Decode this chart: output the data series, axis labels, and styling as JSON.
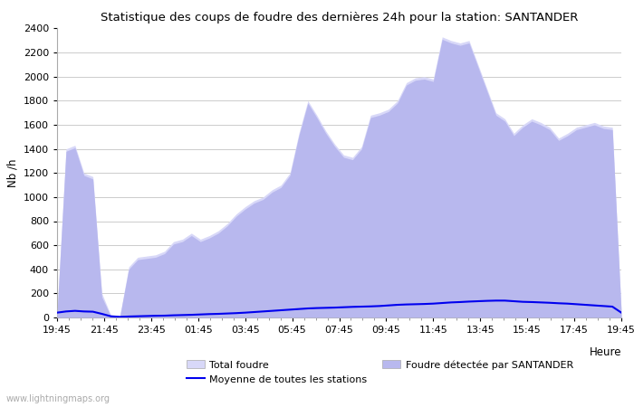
{
  "title": "Statistique des coups de foudre des dernières 24h pour la station: SANTANDER",
  "xlabel": "Heure",
  "ylabel": "Nb /h",
  "watermark": "www.lightningmaps.org",
  "ylim": [
    0,
    2400
  ],
  "yticks": [
    0,
    200,
    400,
    600,
    800,
    1000,
    1200,
    1400,
    1600,
    1800,
    2000,
    2200,
    2400
  ],
  "x_labels_display": [
    "19:45",
    "21:45",
    "23:45",
    "01:45",
    "03:45",
    "05:45",
    "07:45",
    "09:45",
    "11:45",
    "13:45",
    "15:45",
    "17:45",
    "19:45"
  ],
  "color_total": "#d8d8f8",
  "color_santander": "#b8b8ee",
  "color_moyenne": "#0000ee",
  "legend_total": "Total foudre",
  "legend_santander": "Foudre détectée par SANTANDER",
  "legend_moyenne": "Moyenne de toutes les stations",
  "total_foudre": [
    50,
    1400,
    1430,
    1200,
    1170,
    200,
    20,
    10,
    420,
    500,
    510,
    520,
    550,
    630,
    650,
    700,
    650,
    680,
    720,
    780,
    860,
    920,
    970,
    1000,
    1060,
    1100,
    1200,
    1530,
    1800,
    1680,
    1550,
    1440,
    1350,
    1330,
    1420,
    1680,
    1700,
    1730,
    1800,
    1950,
    1990,
    2000,
    1980,
    2330,
    2300,
    2280,
    2300,
    2100,
    1900,
    1700,
    1650,
    1530,
    1600,
    1650,
    1620,
    1580,
    1490,
    1530,
    1580,
    1600,
    1620,
    1590,
    1580,
    50
  ],
  "santander": [
    30,
    1380,
    1410,
    1180,
    1150,
    170,
    10,
    5,
    400,
    480,
    490,
    500,
    530,
    610,
    630,
    680,
    630,
    660,
    700,
    760,
    840,
    900,
    950,
    980,
    1040,
    1080,
    1180,
    1510,
    1780,
    1660,
    1530,
    1420,
    1330,
    1310,
    1400,
    1660,
    1680,
    1710,
    1780,
    1930,
    1970,
    1980,
    1960,
    2310,
    2280,
    2260,
    2280,
    2080,
    1880,
    1680,
    1630,
    1510,
    1580,
    1630,
    1600,
    1560,
    1470,
    1510,
    1560,
    1580,
    1600,
    1570,
    1560,
    30
  ],
  "moyenne": [
    40,
    50,
    55,
    50,
    48,
    30,
    10,
    5,
    8,
    10,
    12,
    14,
    15,
    18,
    20,
    22,
    25,
    28,
    30,
    33,
    36,
    40,
    45,
    50,
    55,
    60,
    65,
    70,
    75,
    78,
    80,
    82,
    85,
    88,
    90,
    92,
    95,
    100,
    105,
    108,
    110,
    112,
    115,
    120,
    125,
    128,
    132,
    135,
    138,
    140,
    140,
    135,
    130,
    128,
    125,
    122,
    118,
    115,
    110,
    105,
    100,
    95,
    90,
    40
  ],
  "background_color": "#ffffff",
  "grid_color": "#cccccc",
  "spine_color": "#aaaaaa"
}
